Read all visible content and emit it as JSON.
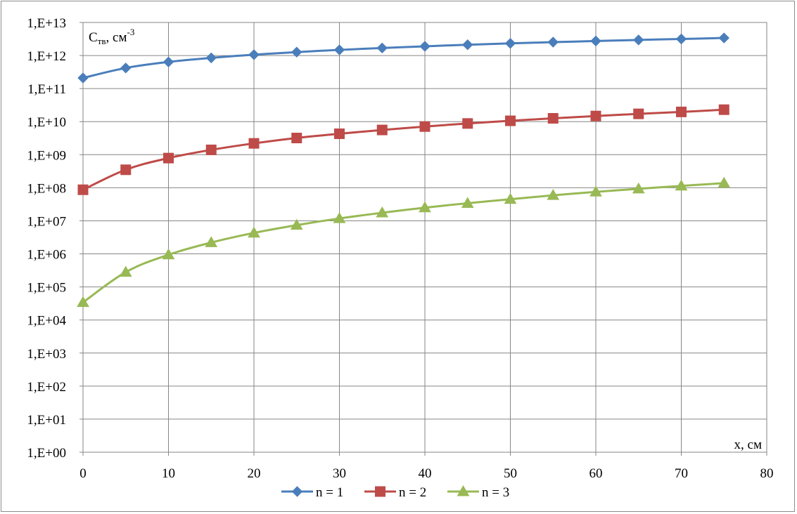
{
  "chart_data": {
    "type": "line",
    "title": "",
    "ylabel": {
      "main": "C",
      "sub": "тв",
      "unit": ", см",
      "sup": "-3"
    },
    "xlabel": "x, см",
    "y_scale": "log",
    "ylim": [
      1,
      10000000000000.0
    ],
    "xlim": [
      0,
      80
    ],
    "x_ticks": [
      0,
      10,
      20,
      30,
      40,
      50,
      60,
      70,
      80
    ],
    "x_tick_labels": [
      "0",
      "10",
      "20",
      "30",
      "40",
      "50",
      "60",
      "70",
      "80"
    ],
    "y_ticks": [
      1,
      10.0,
      100.0,
      1000.0,
      10000.0,
      100000.0,
      1000000.0,
      10000000.0,
      100000000.0,
      1000000000.0,
      10000000000.0,
      100000000000.0,
      1000000000000.0,
      10000000000000.0
    ],
    "y_tick_labels": [
      "1,E+00",
      "1,E+01",
      "1,E+02",
      "1,E+03",
      "1,E+04",
      "1,E+05",
      "1,E+06",
      "1,E+07",
      "1,E+08",
      "1,E+09",
      "1,E+10",
      "1,E+11",
      "1,E+12",
      "1,E+13"
    ],
    "grid": true,
    "legend_position": "bottom",
    "x": [
      0,
      5,
      10,
      15,
      20,
      25,
      30,
      35,
      40,
      45,
      50,
      55,
      60,
      65,
      70,
      75
    ],
    "series": [
      {
        "name": "n = 1",
        "color": "#4a7ebb",
        "marker": "diamond",
        "values": [
          210000000000.0,
          420000000000.0,
          640000000000.0,
          850000000000.0,
          1060000000000.0,
          1270000000000.0,
          1480000000000.0,
          1690000000000.0,
          1900000000000.0,
          2120000000000.0,
          2330000000000.0,
          2540000000000.0,
          2750000000000.0,
          2960000000000.0,
          3170000000000.0,
          3400000000000.0
        ]
      },
      {
        "name": "n = 2",
        "color": "#be4b48",
        "marker": "square",
        "values": [
          87000000.0,
          350000000.0,
          790000000.0,
          1400000000.0,
          2200000000.0,
          3200000000.0,
          4300000000.0,
          5600000000.0,
          7100000000.0,
          8800000000.0,
          10600000000.0,
          12600000000.0,
          14800000000.0,
          17200000000.0,
          19700000000.0,
          23000000000.0
        ]
      },
      {
        "name": "n = 3",
        "color": "#98b954",
        "marker": "triangle",
        "values": [
          34000.0,
          280000.0,
          940000.0,
          2200000.0,
          4300000.0,
          7400000.0,
          11800000.0,
          17500000.0,
          25000000.0,
          34000000.0,
          45000000.0,
          59000000.0,
          75000000.0,
          93000000.0,
          114000000.0,
          138000000.0
        ]
      }
    ]
  }
}
